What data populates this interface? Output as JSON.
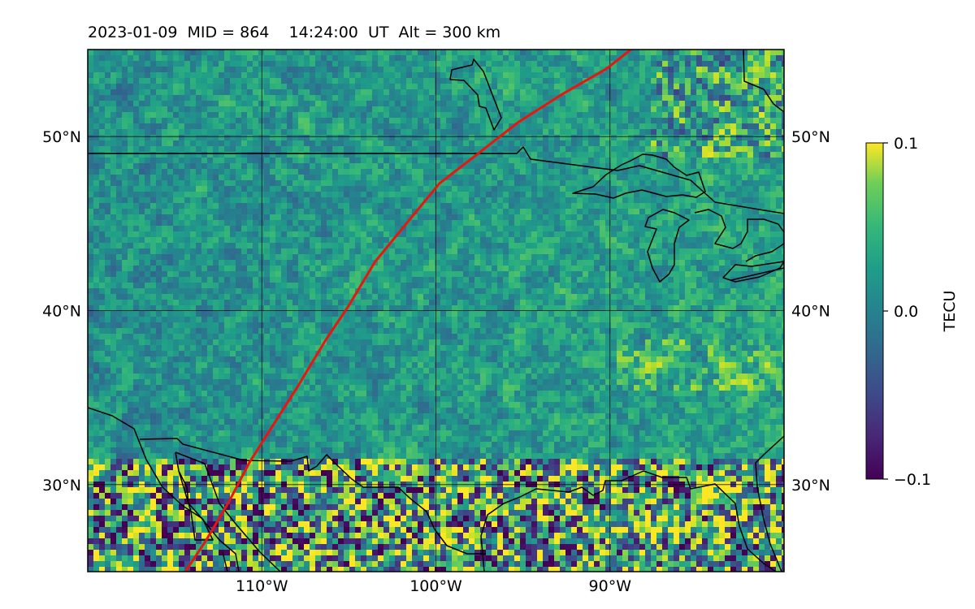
{
  "title": "2023-01-09  MID = 864    14:24:00  UT  Alt = 300 km",
  "map": {
    "lon_range": [
      -120,
      -80
    ],
    "lat_range": [
      25,
      55
    ],
    "grid": true,
    "lon_ticks": [
      {
        "value": -110,
        "label": "110°W"
      },
      {
        "value": -100,
        "label": "100°W"
      },
      {
        "value": -90,
        "label": "90°W"
      }
    ],
    "lat_ticks": [
      {
        "value": 50,
        "label": "50°N"
      },
      {
        "value": 40,
        "label": "40°N"
      },
      {
        "value": 30,
        "label": "30°N"
      }
    ],
    "field": "TEC perturbation",
    "track_color": "#e8160c",
    "track": [
      [
        -114.4,
        25.0
      ],
      [
        -113.2,
        26.8
      ],
      [
        -111.9,
        29.0
      ],
      [
        -110.7,
        31.3
      ],
      [
        -109.3,
        33.5
      ],
      [
        -107.9,
        35.7
      ],
      [
        -106.4,
        38.2
      ],
      [
        -105.0,
        40.3
      ],
      [
        -103.5,
        42.8
      ],
      [
        -101.7,
        45.0
      ],
      [
        -99.8,
        47.3
      ],
      [
        -97.6,
        49.0
      ],
      [
        -95.3,
        50.8
      ],
      [
        -92.8,
        52.4
      ],
      [
        -90.2,
        53.9
      ],
      [
        -88.8,
        55.0
      ]
    ],
    "colorbar": {
      "label": "TECU",
      "colormap": "viridis",
      "min": -0.1,
      "max": 0.1,
      "ticks": [
        {
          "value": 0.1,
          "label": "0.1"
        },
        {
          "value": 0.0,
          "label": "0.0"
        },
        {
          "value": -0.1,
          "label": "−0.1"
        }
      ]
    },
    "border_color": "#000000"
  }
}
